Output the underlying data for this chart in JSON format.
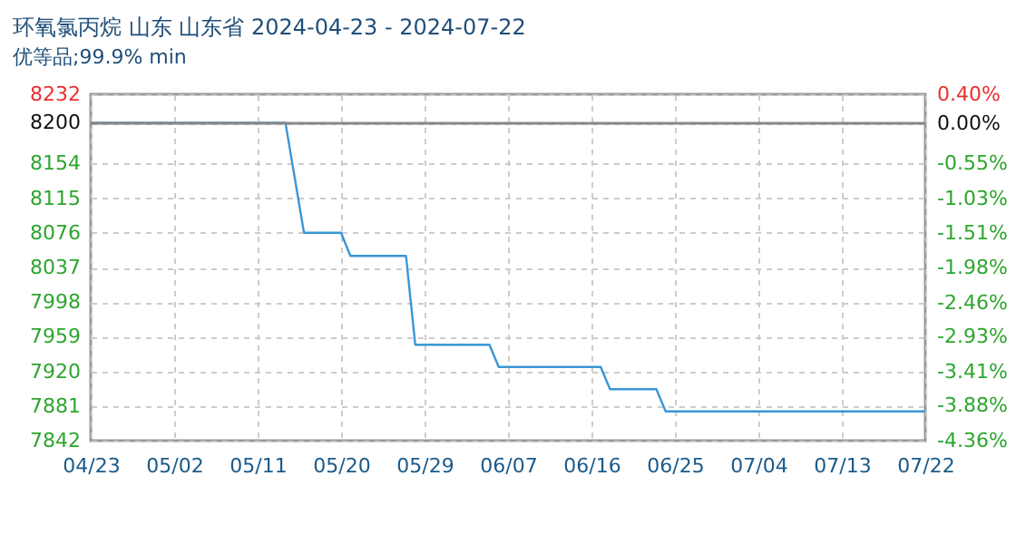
{
  "chart_data": {
    "type": "line",
    "title": "环氧氯丙烷 山东 山东省 2024-04-23 - 2024-07-22",
    "subtitle": "优等品;99.9% min",
    "x": [
      "2024-04-23",
      "2024-05-14",
      "2024-05-16",
      "2024-05-20",
      "2024-05-21",
      "2024-05-27",
      "2024-05-28",
      "2024-06-05",
      "2024-06-06",
      "2024-06-17",
      "2024-06-18",
      "2024-06-23",
      "2024-06-24",
      "2024-07-22"
    ],
    "series": [
      {
        "color": "#3a96d8",
        "values": [
          8200,
          8200,
          8076,
          8076,
          8050,
          8050,
          7950,
          7950,
          7925,
          7925,
          7900,
          7900,
          7875,
          7875
        ]
      }
    ],
    "xlim": [
      "2024-04-23",
      "2024-07-22"
    ],
    "xticks": [
      {
        "value": "2024-04-23",
        "label": "04/23"
      },
      {
        "value": "2024-05-02",
        "label": "05/02"
      },
      {
        "value": "2024-05-11",
        "label": "05/11"
      },
      {
        "value": "2024-05-20",
        "label": "05/20"
      },
      {
        "value": "2024-05-29",
        "label": "05/29"
      },
      {
        "value": "2024-06-07",
        "label": "06/07"
      },
      {
        "value": "2024-06-16",
        "label": "06/16"
      },
      {
        "value": "2024-06-25",
        "label": "06/25"
      },
      {
        "value": "2024-07-04",
        "label": "07/04"
      },
      {
        "value": "2024-07-13",
        "label": "07/13"
      },
      {
        "value": "2024-07-22",
        "label": "07/22"
      }
    ],
    "ylim": [
      7842,
      8232
    ],
    "yticks": [
      7842,
      7881,
      7920,
      7959,
      7998,
      8037,
      8076,
      8115,
      8154,
      8200,
      8232
    ],
    "y2lim": [
      -4.36,
      0.4
    ],
    "y2ticks": [
      {
        "value": -4.36,
        "label": "-4.36%"
      },
      {
        "value": -3.88,
        "label": "-3.88%"
      },
      {
        "value": -3.41,
        "label": "-3.41%"
      },
      {
        "value": -2.93,
        "label": "-2.93%"
      },
      {
        "value": -2.46,
        "label": "-2.46%"
      },
      {
        "value": -1.98,
        "label": "-1.98%"
      },
      {
        "value": -1.51,
        "label": "-1.51%"
      },
      {
        "value": -1.03,
        "label": "-1.03%"
      },
      {
        "value": -0.55,
        "label": "-0.55%"
      },
      {
        "value": 0,
        "label": "0.00%"
      },
      {
        "value": 0.4,
        "label": "0.40%"
      }
    ],
    "ref_lines": [
      {
        "axis": "y2",
        "value": 0,
        "color": "#888888"
      }
    ],
    "grid": true,
    "marker": "none",
    "line_style": "solid"
  }
}
